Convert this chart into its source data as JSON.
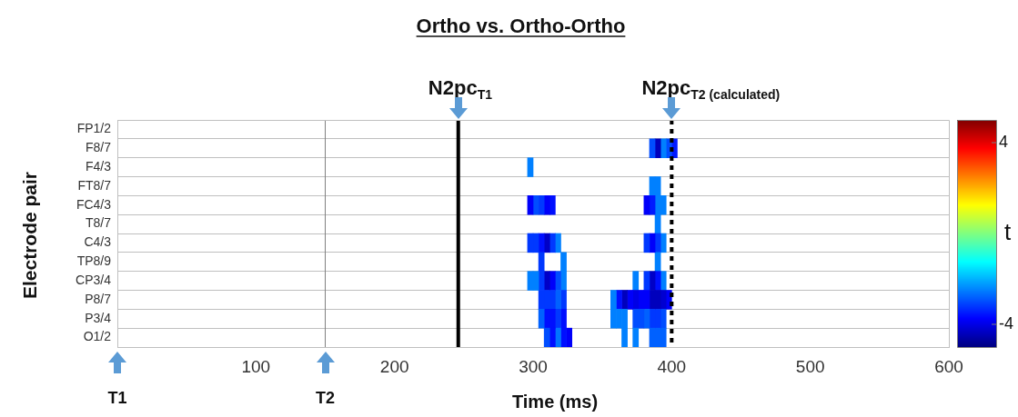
{
  "chart_data": {
    "type": "heatmap",
    "title": "Ortho vs. Ortho-Ortho",
    "xlabel": "Time (ms)",
    "ylabel": "Electrode pair",
    "clabel": "t",
    "x": [
      298,
      302,
      306,
      310,
      314,
      318,
      322,
      326,
      330,
      334,
      338,
      342,
      346,
      350,
      354,
      358,
      362,
      366,
      370,
      374,
      378,
      382,
      386,
      390,
      394,
      398,
      402
    ],
    "y_categories": [
      "FP1/2",
      "F8/7",
      "F4/3",
      "FT8/7",
      "FC4/3",
      "T8/7",
      "C4/3",
      "TP8/9",
      "CP3/4",
      "P8/7",
      "P3/4",
      "O1/2"
    ],
    "cells": [
      [
        null,
        null,
        null,
        null,
        null,
        null,
        null,
        null,
        null,
        null,
        null,
        null,
        null,
        null,
        null,
        null,
        null,
        null,
        null,
        null,
        null,
        null,
        null,
        null,
        null,
        null,
        null
      ],
      [
        null,
        null,
        null,
        null,
        null,
        null,
        null,
        null,
        null,
        null,
        null,
        null,
        null,
        null,
        null,
        null,
        null,
        null,
        null,
        null,
        null,
        null,
        -3,
        -4.4,
        -2.5,
        -3,
        -3.5
      ],
      [
        -2.5,
        null,
        null,
        null,
        null,
        null,
        null,
        null,
        null,
        null,
        null,
        null,
        null,
        null,
        null,
        null,
        null,
        null,
        null,
        null,
        null,
        null,
        null,
        null,
        null,
        null,
        null
      ],
      [
        null,
        null,
        null,
        null,
        null,
        null,
        null,
        null,
        null,
        null,
        null,
        null,
        null,
        null,
        null,
        null,
        null,
        null,
        null,
        null,
        null,
        null,
        -2.5,
        -2.5,
        null,
        null,
        null
      ],
      [
        -3.8,
        -3,
        -3.2,
        -3.8,
        -3.6,
        null,
        null,
        null,
        null,
        null,
        null,
        null,
        null,
        null,
        null,
        null,
        null,
        null,
        null,
        null,
        null,
        -3.8,
        -3.5,
        -2.5,
        -2.5,
        null,
        null
      ],
      [
        null,
        null,
        null,
        null,
        null,
        null,
        null,
        null,
        null,
        null,
        null,
        null,
        null,
        null,
        null,
        null,
        null,
        null,
        null,
        null,
        null,
        null,
        null,
        -2.5,
        null,
        null,
        null
      ],
      [
        -3.2,
        -3.2,
        -3.6,
        -4.3,
        -3.2,
        -2.5,
        null,
        null,
        null,
        null,
        null,
        null,
        null,
        null,
        null,
        null,
        null,
        null,
        null,
        null,
        null,
        -3.2,
        -3.8,
        -3.2,
        -2.5,
        null,
        null
      ],
      [
        null,
        null,
        -3.2,
        null,
        null,
        null,
        -2.5,
        null,
        null,
        null,
        null,
        null,
        null,
        null,
        null,
        null,
        null,
        null,
        null,
        null,
        null,
        null,
        null,
        -2.5,
        null,
        null,
        null
      ],
      [
        -2.5,
        -2.5,
        -3.2,
        -4.3,
        -3.8,
        -3,
        -2.5,
        null,
        null,
        null,
        null,
        null,
        null,
        null,
        null,
        null,
        null,
        null,
        null,
        -2.5,
        null,
        -3.2,
        -4.3,
        -3.6,
        -2.5,
        null,
        null
      ],
      [
        null,
        null,
        -3.2,
        -3.2,
        -3.2,
        -2.8,
        -3.2,
        null,
        null,
        null,
        null,
        null,
        null,
        null,
        null,
        -2.5,
        -3.6,
        -4.4,
        -3.8,
        -4,
        -3.8,
        -3.8,
        -4.4,
        -4.4,
        -4.2,
        -3.8,
        null
      ],
      [
        null,
        null,
        -2.8,
        -3.6,
        -3.6,
        -3.2,
        -3.6,
        null,
        null,
        null,
        null,
        null,
        null,
        null,
        null,
        -2.5,
        -2.5,
        -2.5,
        null,
        -3,
        -3,
        -2.8,
        -3.2,
        -3.2,
        -3,
        null,
        null
      ],
      [
        null,
        null,
        null,
        -3,
        -3.6,
        -2.6,
        -3.6,
        -3.8,
        null,
        null,
        null,
        null,
        null,
        null,
        null,
        null,
        null,
        -2.5,
        null,
        -2.5,
        null,
        null,
        -2.8,
        -2.8,
        -2.8,
        null,
        null
      ]
    ],
    "xlim": [
      0,
      600
    ],
    "xticks": [
      100,
      200,
      300,
      400,
      500,
      600
    ],
    "clim": [
      -5,
      5
    ],
    "cticks": [
      {
        "value": 4,
        "label": "4"
      },
      {
        "value": -4,
        "label": "-4"
      }
    ],
    "grid": "y",
    "ref_lines": [
      {
        "axis": "x",
        "value": 150,
        "color": "#808080",
        "line_style": "solid",
        "label": "T2"
      },
      {
        "axis": "x",
        "value": 246,
        "color": "#000000",
        "line_style": "solid",
        "label": "N2pc$_{T1}$"
      },
      {
        "axis": "x",
        "value": 400,
        "color": "#000000",
        "line_style": "dotted",
        "label": "N2pc$_{T2 (calculated)}$"
      }
    ],
    "annotations": [
      "T1"
    ]
  }
}
